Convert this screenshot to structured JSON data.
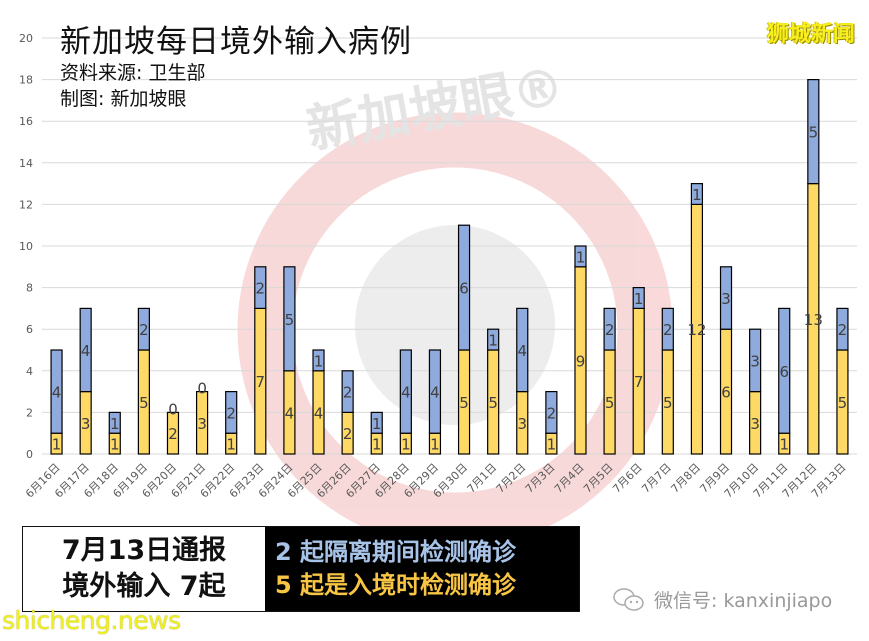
{
  "header": {
    "title": "新加坡每日境外输入病例",
    "source": "资料来源:  卫生部",
    "author": "制图:  新加坡眼",
    "brand": "狮城新闻",
    "watermark": "新加坡眼®"
  },
  "colors": {
    "arrival": "#ffd966",
    "quarantine": "#8faadc",
    "grid": "#d9d9d9",
    "axis_text": "#595959",
    "bar_border": "#000000"
  },
  "summary": {
    "line1": "7月13日通报",
    "line2": "境外输入 7起",
    "quarantine_text": "2 起隔离期间检测确诊",
    "arrival_text": "5 起是入境时检测确诊"
  },
  "footer": {
    "site": "shicheng.news",
    "wechat_label": "微信号: kanxinjiapo"
  },
  "chart_data": {
    "type": "bar",
    "stacked": true,
    "title": "新加坡每日境外输入病例",
    "xlabel": "",
    "ylabel": "",
    "ylim": [
      0,
      20
    ],
    "yticks": [
      0,
      2,
      4,
      6,
      8,
      10,
      12,
      14,
      16,
      18,
      20
    ],
    "grid": true,
    "legend": "none",
    "categories": [
      "6月16日",
      "6月17日",
      "6月18日",
      "6月19日",
      "6月20日",
      "6月21日",
      "6月22日",
      "6月23日",
      "6月24日",
      "6月25日",
      "6月26日",
      "6月27日",
      "6月28日",
      "6月29日",
      "6月30日",
      "7月1日",
      "7月2日",
      "7月3日",
      "7月4日",
      "7月5日",
      "7月6日",
      "7月7日",
      "7月8日",
      "7月9日",
      "7月10日",
      "7月11日",
      "7月12日",
      "7月13日"
    ],
    "series": [
      {
        "name": "入境时检测确诊",
        "color": "#ffd966",
        "values": [
          1,
          3,
          1,
          5,
          2,
          3,
          1,
          7,
          4,
          4,
          2,
          1,
          1,
          1,
          5,
          5,
          3,
          1,
          9,
          5,
          7,
          5,
          12,
          6,
          3,
          1,
          13,
          5
        ]
      },
      {
        "name": "隔离期间检测确诊",
        "color": "#8faadc",
        "values": [
          4,
          4,
          1,
          2,
          0,
          0,
          2,
          2,
          5,
          1,
          2,
          1,
          4,
          4,
          6,
          1,
          4,
          2,
          1,
          2,
          1,
          2,
          1,
          3,
          3,
          6,
          5,
          2
        ]
      }
    ]
  }
}
